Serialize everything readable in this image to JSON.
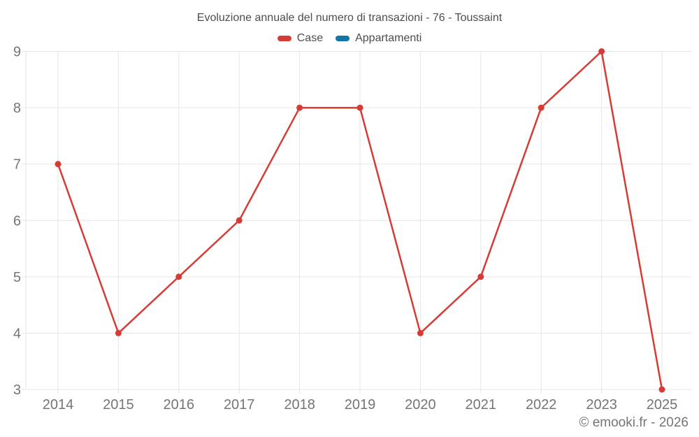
{
  "chart_data": {
    "type": "line",
    "title": "Evoluzione annuale del numero di transazioni - 76 - Toussaint",
    "watermark": "© emooki.fr - 2026",
    "categories": [
      "2014",
      "2015",
      "2016",
      "2017",
      "2018",
      "2019",
      "2020",
      "2021",
      "2022",
      "2023",
      "2025"
    ],
    "series": [
      {
        "name": "Case",
        "color": "#d63c35",
        "values": [
          7,
          4,
          5,
          6,
          8,
          8,
          4,
          5,
          8,
          9,
          3
        ]
      },
      {
        "name": "Appartamenti",
        "color": "#1374a6",
        "values": []
      }
    ],
    "xlabel": "",
    "ylabel": "",
    "y_ticks": [
      3,
      4,
      5,
      6,
      7,
      8,
      9
    ],
    "ylim": [
      3,
      9
    ],
    "grid": true,
    "grid_color": "#e6e6e6",
    "tick_label_color": "#757575",
    "legend_position": "top",
    "marker": "circle"
  }
}
